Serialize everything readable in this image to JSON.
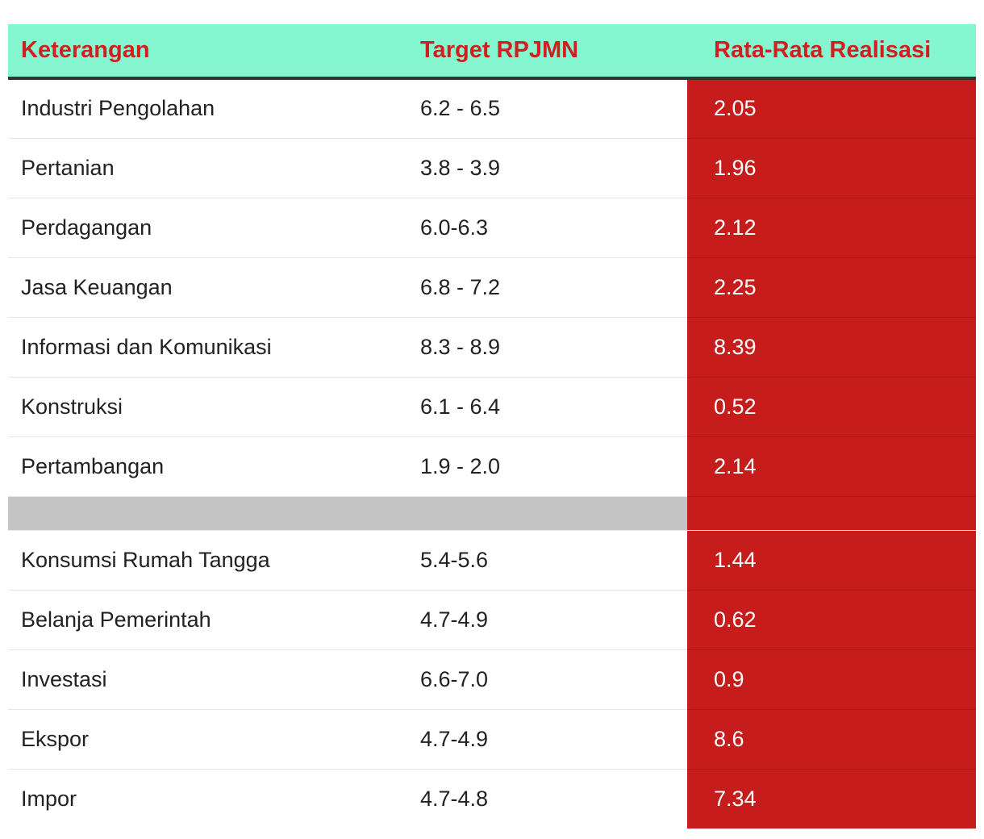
{
  "chart_data": {
    "type": "table",
    "columns": [
      "Keterangan",
      "Target RPJMN",
      "Rata-Rata Realisasi"
    ],
    "rows": [
      {
        "keterangan": "Industri Pengolahan",
        "target": "6.2 - 6.5",
        "realisasi": "2.05"
      },
      {
        "keterangan": "Pertanian",
        "target": "3.8 - 3.9",
        "realisasi": "1.96"
      },
      {
        "keterangan": "Perdagangan",
        "target": "6.0-6.3",
        "realisasi": "2.12"
      },
      {
        "keterangan": "Jasa Keuangan",
        "target": "6.8 - 7.2",
        "realisasi": "2.25"
      },
      {
        "keterangan": "Informasi dan Komunikasi",
        "target": "8.3 - 8.9",
        "realisasi": "8.39"
      },
      {
        "keterangan": "Konstruksi",
        "target": "6.1 - 6.4",
        "realisasi": "0.52"
      },
      {
        "keterangan": "Pertambangan",
        "target": "1.9 - 2.0",
        "realisasi": "2.14"
      },
      {
        "separator": true
      },
      {
        "keterangan": "Konsumsi Rumah Tangga",
        "target": "5.4-5.6",
        "realisasi": "1.44"
      },
      {
        "keterangan": "Belanja Pemerintah",
        "target": "4.7-4.9",
        "realisasi": "0.62"
      },
      {
        "keterangan": "Investasi",
        "target": "6.6-7.0",
        "realisasi": "0.9"
      },
      {
        "keterangan": "Ekspor",
        "target": "4.7-4.9",
        "realisasi": "8.6"
      },
      {
        "keterangan": "Impor",
        "target": "4.7-4.8",
        "realisasi": "7.34"
      }
    ],
    "colors": {
      "header_background": "#84f7d1",
      "header_text": "#d01f1f",
      "highlight_column": "#c61c1c",
      "separator_row": "#c4c4c4"
    }
  }
}
